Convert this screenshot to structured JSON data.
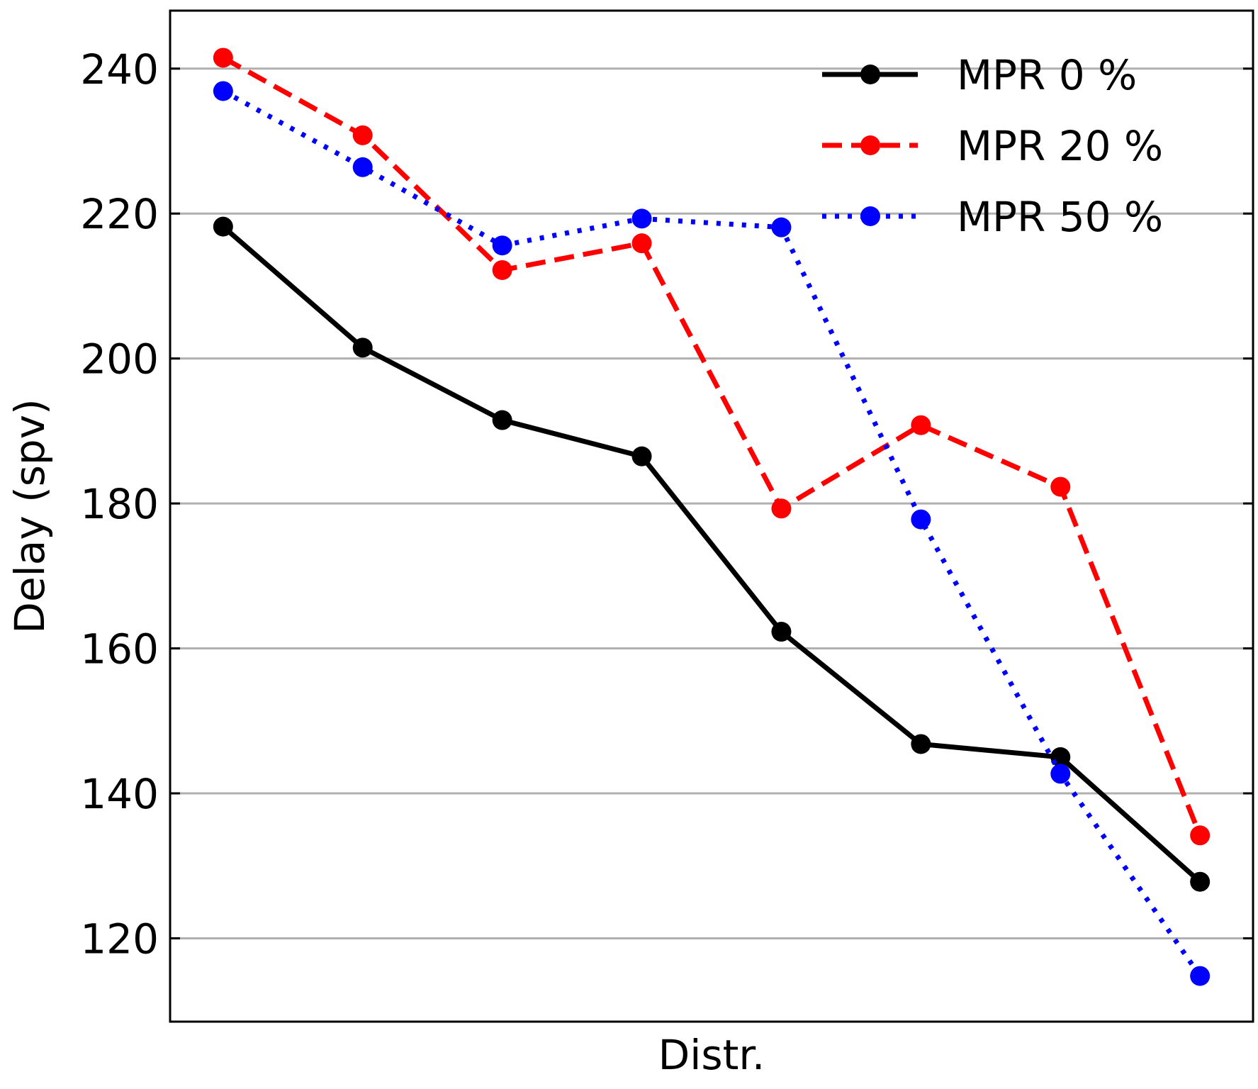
{
  "chart_data": {
    "type": "line",
    "xlabel": "Distr.",
    "ylabel": "Delay (spv)",
    "x": [
      1,
      2,
      3,
      4,
      5,
      6,
      7,
      8
    ],
    "xlim": [
      0.62,
      8.38
    ],
    "ylim": [
      108.5,
      248
    ],
    "yticks": [
      120,
      140,
      160,
      180,
      200,
      220,
      240
    ],
    "grid": "horizontal",
    "legend_position": "top-right",
    "series": [
      {
        "name": "MPR 0 %",
        "color": "#000000",
        "line_style": "solid",
        "values": [
          218.2,
          201.5,
          191.5,
          186.5,
          162.3,
          146.8,
          145.0,
          127.8
        ]
      },
      {
        "name": "MPR 20 %",
        "color": "#ff0000",
        "line_style": "dashed",
        "values": [
          241.5,
          230.8,
          212.2,
          215.9,
          179.3,
          190.8,
          182.3,
          134.2
        ]
      },
      {
        "name": "MPR 50 %",
        "color": "#0000ff",
        "line_style": "dotted",
        "values": [
          236.9,
          226.4,
          215.6,
          219.3,
          218.1,
          177.8,
          142.7,
          114.8
        ]
      }
    ]
  }
}
